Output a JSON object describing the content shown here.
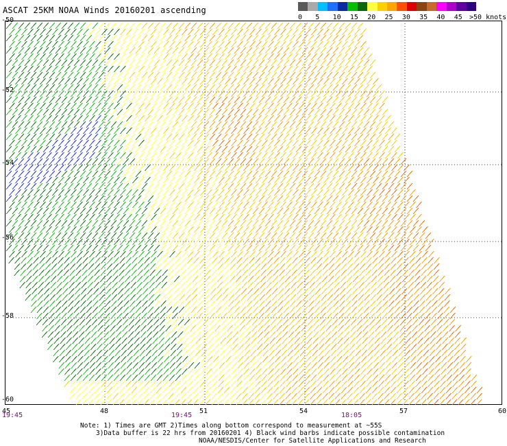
{
  "title": "ASCAT 25KM NOAA Winds 20160201 ascending",
  "legend": {
    "unit": ">50 knots",
    "ticks": [
      "0",
      "5",
      "10",
      "15",
      "20",
      "25",
      "30",
      "35",
      "40",
      "45"
    ],
    "colors": [
      "#5a5a5a",
      "#aaaaaa",
      "#00bfff",
      "#1e6fff",
      "#0a2aa0",
      "#00c000",
      "#0a6a0a",
      "#ffff40",
      "#ffd000",
      "#ffa500",
      "#ff5000",
      "#e00000",
      "#8b4513",
      "#c86a2a",
      "#ff00ff",
      "#b000d0",
      "#6000a0",
      "#300080"
    ]
  },
  "map": {
    "lon_labels": [
      "45",
      "48",
      "51",
      "54",
      "57",
      "60"
    ],
    "lat_labels": [
      "-50",
      "-52",
      "-54",
      "-56",
      "-58",
      "-60"
    ],
    "time_labels": [
      "19:45",
      "19:45",
      "18:05"
    ],
    "grid": "dotted",
    "swath_colors": {
      "blue": "#1a2ad0",
      "dark_green": "#0a6a0a",
      "green": "#12b012",
      "yellow": "#ffff3a",
      "gold": "#f2d000",
      "orange": "#f0a000",
      "dark_orange": "#e07000"
    }
  },
  "notes": {
    "line1": "Note: 1) Times are GMT 2)Times along bottom correspond to measurement at ~55S",
    "line2": "3)Data buffer is 22 hrs from 20160201 4) Black wind barbs indicate possible contamination",
    "line3": "NOAA/NESDIS/Center for Satellite Applications and Research"
  }
}
